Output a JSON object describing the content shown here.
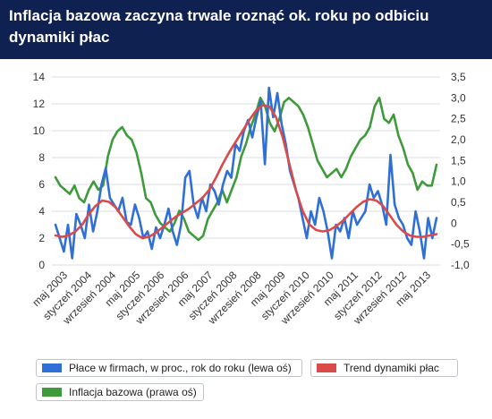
{
  "title": "Inflacja bazowa zaczyna trwale roznąć ok. roku po odbiciu dynamiki płac",
  "colors": {
    "header": "#0f2150",
    "wages": "#2f6fd6",
    "trend": "#d94b4b",
    "core": "#3f9a3c",
    "grid": "#d9dde3"
  },
  "legend": {
    "wages": "Płace w firmach, w proc., rok do roku (lewa oś)",
    "trend": "Trend dynamiki płac",
    "core": "Inflacja bazowa (prawa oś)"
  },
  "chart_data": {
    "type": "line",
    "x_labels": [
      "maj 2003",
      "styczeń 2004",
      "wrzesień 2004",
      "maj 2005",
      "styczeń 2006",
      "wrzesień 2006",
      "maj 2007",
      "styczeń 2008",
      "wrzesień 2008",
      "maj 2009",
      "styczeń 2010",
      "wrzesień 2010",
      "maj 2011",
      "styczeń 2012",
      "wrzesień 2012",
      "maj 2013"
    ],
    "x_range": [
      "2003-01",
      "2013-07"
    ],
    "y_left": {
      "min": 0,
      "max": 14,
      "ticks": [
        "0",
        "2",
        "4",
        "6",
        "8",
        "10",
        "12",
        "14"
      ]
    },
    "y_right": {
      "min": -1.0,
      "max": 3.5,
      "ticks": [
        "-1,0",
        "-0,5",
        "0",
        "0,5",
        "1,0",
        "1,5",
        "2,0",
        "2,5",
        "3,0",
        "3,5"
      ]
    },
    "grid": true,
    "legend_position": "bottom",
    "series": [
      {
        "name": "Płace w firmach, w proc., rok do roku (lewa oś)",
        "axis": "left",
        "values": [
          3.0,
          2.0,
          1.0,
          3.0,
          0.5,
          3.8,
          3.0,
          2.0,
          4.5,
          2.5,
          4.0,
          6.0,
          7.2,
          5.0,
          4.5,
          4.0,
          5.0,
          3.2,
          3.0,
          4.5,
          3.5,
          2.0,
          2.5,
          1.2,
          2.8,
          2.0,
          3.0,
          4.2,
          2.5,
          1.5,
          3.0,
          6.5,
          7.0,
          4.5,
          3.5,
          5.0,
          4.0,
          6.0,
          5.5,
          4.5,
          6.0,
          7.0,
          6.5,
          9.0,
          8.5,
          10.0,
          10.8,
          9.5,
          11.0,
          12.2,
          7.5,
          13.2,
          11.0,
          12.8,
          10.5,
          9.0,
          7.0,
          6.0,
          5.0,
          3.5,
          2.0,
          4.0,
          3.0,
          5.0,
          4.0,
          2.5,
          0.5,
          3.0,
          2.5,
          3.5,
          2.0,
          4.0,
          3.0,
          3.5,
          4.0,
          6.0,
          5.0,
          5.5,
          4.5,
          3.0,
          8.2,
          4.5,
          3.5,
          3.0,
          2.0,
          1.5,
          4.0,
          2.5,
          0.5,
          3.5,
          2.0,
          3.5
        ],
        "x_index_start_month": "2003-01",
        "x_step_months": 1.4
      },
      {
        "name": "Trend dynamiki płac",
        "axis": "left",
        "values": [
          2.2,
          2.1,
          2.2,
          2.5,
          3.0,
          3.8,
          4.4,
          4.8,
          4.7,
          4.3,
          3.6,
          2.9,
          2.3,
          2.0,
          2.1,
          2.4,
          2.8,
          3.2,
          3.6,
          3.9,
          4.2,
          4.6,
          5.0,
          5.6,
          6.5,
          7.5,
          8.4,
          9.2,
          10.0,
          10.8,
          11.5,
          11.9,
          11.8,
          11.0,
          9.5,
          7.5,
          5.5,
          4.0,
          3.0,
          2.6,
          2.5,
          2.6,
          2.9,
          3.3,
          3.8,
          4.3,
          4.7,
          4.9,
          4.8,
          4.4,
          3.7,
          3.0,
          2.5,
          2.2,
          2.1,
          2.1,
          2.2,
          2.3
        ],
        "x_step_months": 2.2
      },
      {
        "name": "Inflacja bazowa (prawa oś)",
        "axis": "right",
        "values": [
          1.1,
          0.9,
          0.8,
          0.7,
          0.9,
          0.6,
          0.5,
          0.8,
          1.0,
          0.8,
          0.9,
          1.6,
          2.0,
          2.2,
          2.3,
          2.1,
          2.0,
          1.7,
          1.2,
          0.6,
          0.5,
          0.2,
          0.0,
          -0.1,
          -0.2,
          0.0,
          0.3,
          0.1,
          -0.2,
          -0.3,
          -0.4,
          -0.3,
          0.1,
          0.3,
          0.5,
          0.8,
          0.5,
          0.8,
          1.1,
          1.6,
          1.9,
          2.3,
          2.6,
          3.0,
          2.8,
          2.4,
          2.2,
          2.5,
          2.9,
          3.0,
          2.9,
          2.8,
          2.6,
          2.3,
          1.9,
          1.5,
          1.3,
          1.1,
          1.2,
          1.3,
          1.1,
          1.3,
          1.6,
          1.8,
          2.0,
          2.1,
          2.3,
          2.8,
          3.0,
          2.5,
          2.4,
          2.6,
          2.1,
          1.8,
          1.4,
          1.2,
          0.8,
          1.0,
          0.9,
          0.9,
          1.4
        ],
        "x_step_months": 1.55
      }
    ]
  }
}
